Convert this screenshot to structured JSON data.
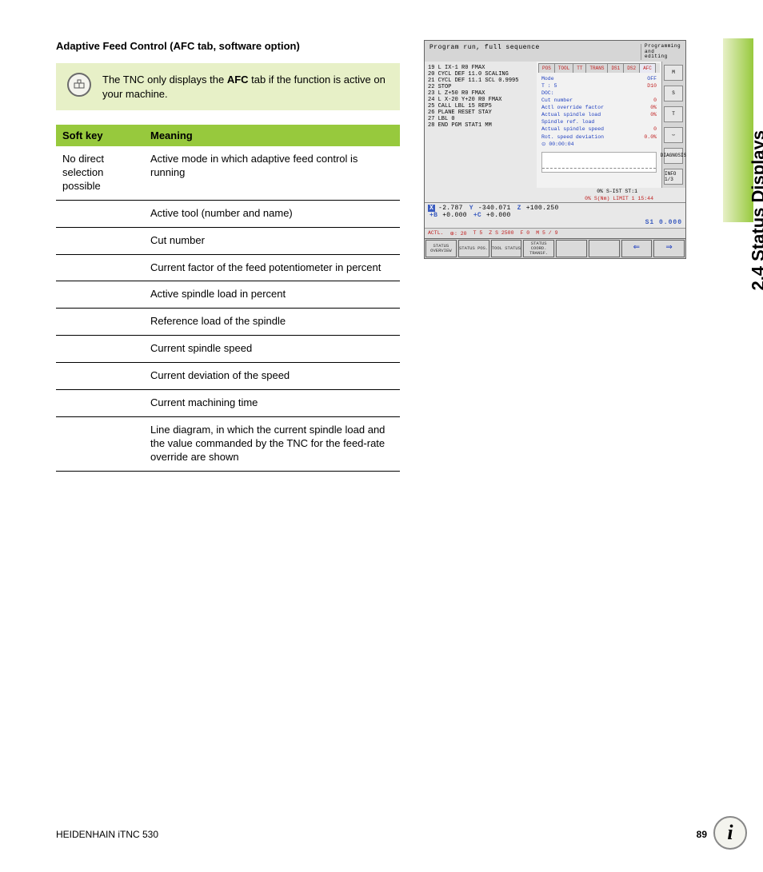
{
  "heading": "Adaptive Feed Control (AFC tab, software option)",
  "note": {
    "pre": "The TNC only displays the ",
    "bold": "AFC",
    "post": " tab if the function is active on your machine."
  },
  "table": {
    "headers": {
      "col1": "Soft key",
      "col2": "Meaning"
    },
    "rows": [
      {
        "softkey": "No direct selection possible",
        "meaning": "Active mode in which adaptive feed control is running"
      },
      {
        "softkey": "",
        "meaning": "Active tool (number and name)"
      },
      {
        "softkey": "",
        "meaning": "Cut number"
      },
      {
        "softkey": "",
        "meaning": "Current factor of the feed potentiometer in percent"
      },
      {
        "softkey": "",
        "meaning": "Active spindle load in percent"
      },
      {
        "softkey": "",
        "meaning": "Reference load of the spindle"
      },
      {
        "softkey": "",
        "meaning": "Current spindle speed"
      },
      {
        "softkey": "",
        "meaning": "Current deviation of the speed"
      },
      {
        "softkey": "",
        "meaning": "Current machining time"
      },
      {
        "softkey": "",
        "meaning": "Line diagram, in which the current spindle load and the value commanded by the TNC for the feed-rate override are shown"
      }
    ]
  },
  "side_tab": "2.4 Status Displays",
  "footer": {
    "left": "HEIDENHAIN iTNC 530",
    "page": "89"
  },
  "info_icon": "i",
  "screenshot": {
    "title": "Program run, full sequence",
    "mode_right": "Programming and editing",
    "program_lines": [
      "19 L IX-1 R0 FMAX",
      "20 CYCL DEF 11.0 SCALING",
      "21 CYCL DEF 11.1 SCL 0.9995",
      "22 STOP",
      "23 L Z+50 R0 FMAX",
      "24 L  X-20  Y+20 R0 FMAX",
      "25 CALL LBL 15 REP5",
      "26 PLANE RESET STAY",
      "27 LBL 0",
      "28 END PGM STAT1 MM"
    ],
    "tabs": [
      "POS",
      "TOOL",
      "TT",
      "TRANS",
      "DS1",
      "DS2",
      "AFC"
    ],
    "active_tab_index": 6,
    "afc_fields": [
      {
        "label": "Mode",
        "value": "OFF",
        "color": "blue"
      },
      {
        "label": "T : 5",
        "value": "D10",
        "color": "red"
      },
      {
        "label": "DOC:",
        "value": "",
        "color": "blue"
      },
      {
        "label": "Cut number",
        "value": "0",
        "color": "red"
      },
      {
        "label": "Actl override factor",
        "value": "0%",
        "color": "red"
      },
      {
        "label": "Actual spindle load",
        "value": "0%",
        "color": "red"
      },
      {
        "label": "Spindle ref. load",
        "value": "",
        "color": "blue"
      },
      {
        "label": "Actual spindle speed",
        "value": "0",
        "color": "red"
      },
      {
        "label": "Rot. speed deviation",
        "value": "0.0%",
        "color": "red"
      },
      {
        "label": "⊙ 00:00:04",
        "value": "",
        "color": "blue"
      }
    ],
    "status_line1": "0% S-IST   ST:1",
    "status_line2": "0% S(Nm) LIMIT 1 15:44",
    "coords": {
      "row1": [
        {
          "axis": "X",
          "val": "-2.787",
          "boxed": true
        },
        {
          "axis": "Y",
          "val": "-340.071",
          "boxed": false
        },
        {
          "axis": "Z",
          "val": "+100.250",
          "boxed": false
        }
      ],
      "row2": [
        {
          "axis": "+B",
          "val": "+0.000",
          "boxed": false
        },
        {
          "axis": "+C",
          "val": "+0.000",
          "boxed": false
        }
      ],
      "s_line": "S1   0.000"
    },
    "actl_row": [
      "ACTL.",
      "⊕: 20",
      "T 5",
      "Z S 2500",
      "F 0",
      "M 5 / 9"
    ],
    "softkeys": [
      "STATUS OVERVIEW",
      "STATUS POS.",
      "TOOL STATUS",
      "STATUS COORD. TRANSF.",
      "",
      "",
      "",
      ""
    ],
    "right_icons": [
      "M",
      "S",
      "T",
      "⇔",
      "DIAGNOSIS",
      "INFO 1/3"
    ]
  },
  "colors": {
    "accent_green": "#97c93d",
    "note_bg": "#e7f0c7",
    "border": "#000000"
  }
}
